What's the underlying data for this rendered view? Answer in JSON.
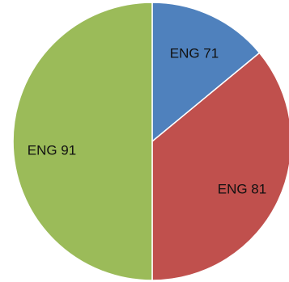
{
  "chart_data": {
    "type": "pie",
    "title": "",
    "categories": [
      "ENG 71",
      "ENG 81",
      "ENG 91"
    ],
    "values": [
      14,
      36,
      50
    ],
    "colors": [
      "#4F81BD",
      "#C0504D",
      "#9BBB59"
    ],
    "legend": "none",
    "start_angle_deg": 0,
    "direction": "clockwise"
  }
}
